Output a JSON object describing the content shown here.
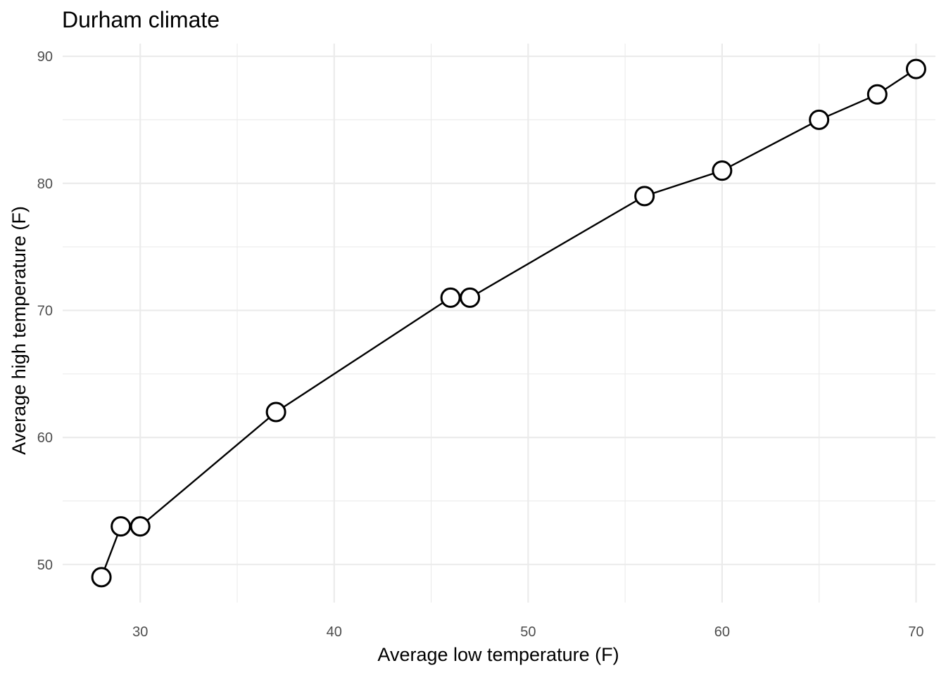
{
  "chart_data": {
    "type": "scatter",
    "title": "Durham climate",
    "xlabel": "Average low temperature (F)",
    "ylabel": "Average high temperature (F)",
    "xlim": [
      26,
      71
    ],
    "ylim": [
      47,
      91
    ],
    "x_ticks": [
      30,
      40,
      50,
      60,
      70
    ],
    "y_ticks": [
      50,
      60,
      70,
      80,
      90
    ],
    "x_tick_labels": [
      "30",
      "40",
      "50",
      "60",
      "70"
    ],
    "y_tick_labels": [
      "50",
      "60",
      "70",
      "80",
      "90"
    ],
    "x_minor_ticks": [
      35,
      45,
      55,
      65
    ],
    "y_minor_ticks": [
      55,
      65,
      75,
      85
    ],
    "grid": true,
    "connected": true,
    "points": [
      {
        "x": 28,
        "y": 49
      },
      {
        "x": 29,
        "y": 53
      },
      {
        "x": 30,
        "y": 53
      },
      {
        "x": 37,
        "y": 62
      },
      {
        "x": 46,
        "y": 71
      },
      {
        "x": 47,
        "y": 71
      },
      {
        "x": 56,
        "y": 79
      },
      {
        "x": 60,
        "y": 81
      },
      {
        "x": 65,
        "y": 85
      },
      {
        "x": 68,
        "y": 87
      },
      {
        "x": 70,
        "y": 89
      }
    ],
    "colors": {
      "line": "#000000",
      "point_fill": "#ffffff",
      "point_stroke": "#000000",
      "grid": "#ebebeb",
      "tick_text": "#4d4d4d"
    }
  }
}
